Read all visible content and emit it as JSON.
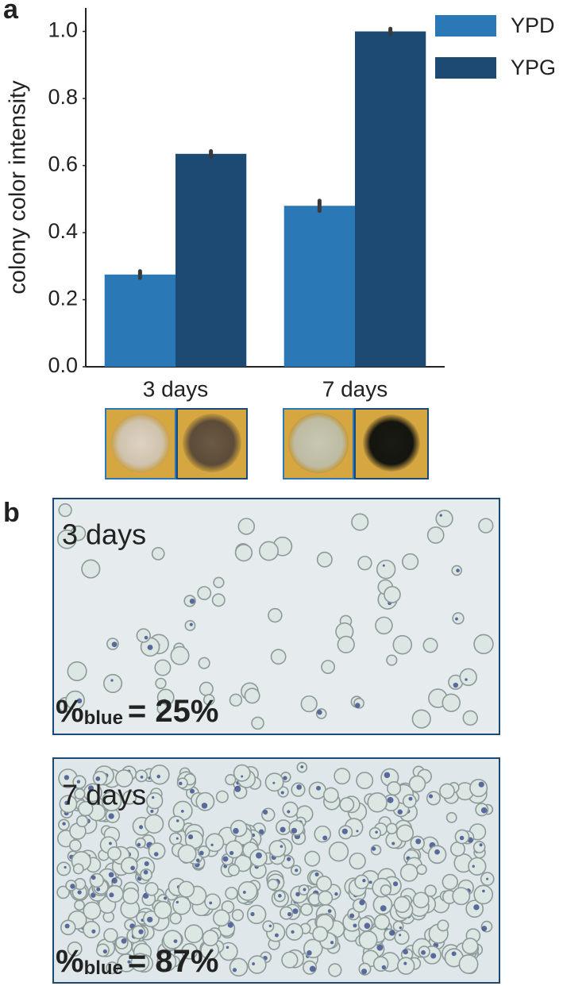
{
  "chart_data": {
    "type": "bar",
    "y_label": "colony color intensity",
    "categories": [
      "3 days",
      "7 days"
    ],
    "series": [
      {
        "name": "YPD",
        "color": "#2a78b5",
        "values": [
          0.275,
          0.48
        ],
        "errors": [
          0.01,
          0.015
        ]
      },
      {
        "name": "YPG",
        "color": "#1d4a72",
        "values": [
          0.635,
          1.0
        ],
        "errors": [
          0.008,
          0.008
        ]
      }
    ],
    "ylim": [
      0,
      1.07
    ],
    "yticks": [
      {
        "value": 0,
        "label": "0.0"
      },
      0.2,
      0.4,
      0.6,
      0.8,
      {
        "value": 1,
        "label": "1.0"
      }
    ],
    "legend": "upper right",
    "grid": false
  },
  "figure": {
    "panel_a_label": "a",
    "panel_b_label": "b",
    "micrographs": [
      {
        "label": "3 days",
        "caption_symbol": "%",
        "caption_sub": "blue",
        "caption_value": "= 25%"
      },
      {
        "label": "7 days",
        "caption_symbol": "%",
        "caption_sub": "blue",
        "caption_value": "= 87%"
      }
    ]
  }
}
